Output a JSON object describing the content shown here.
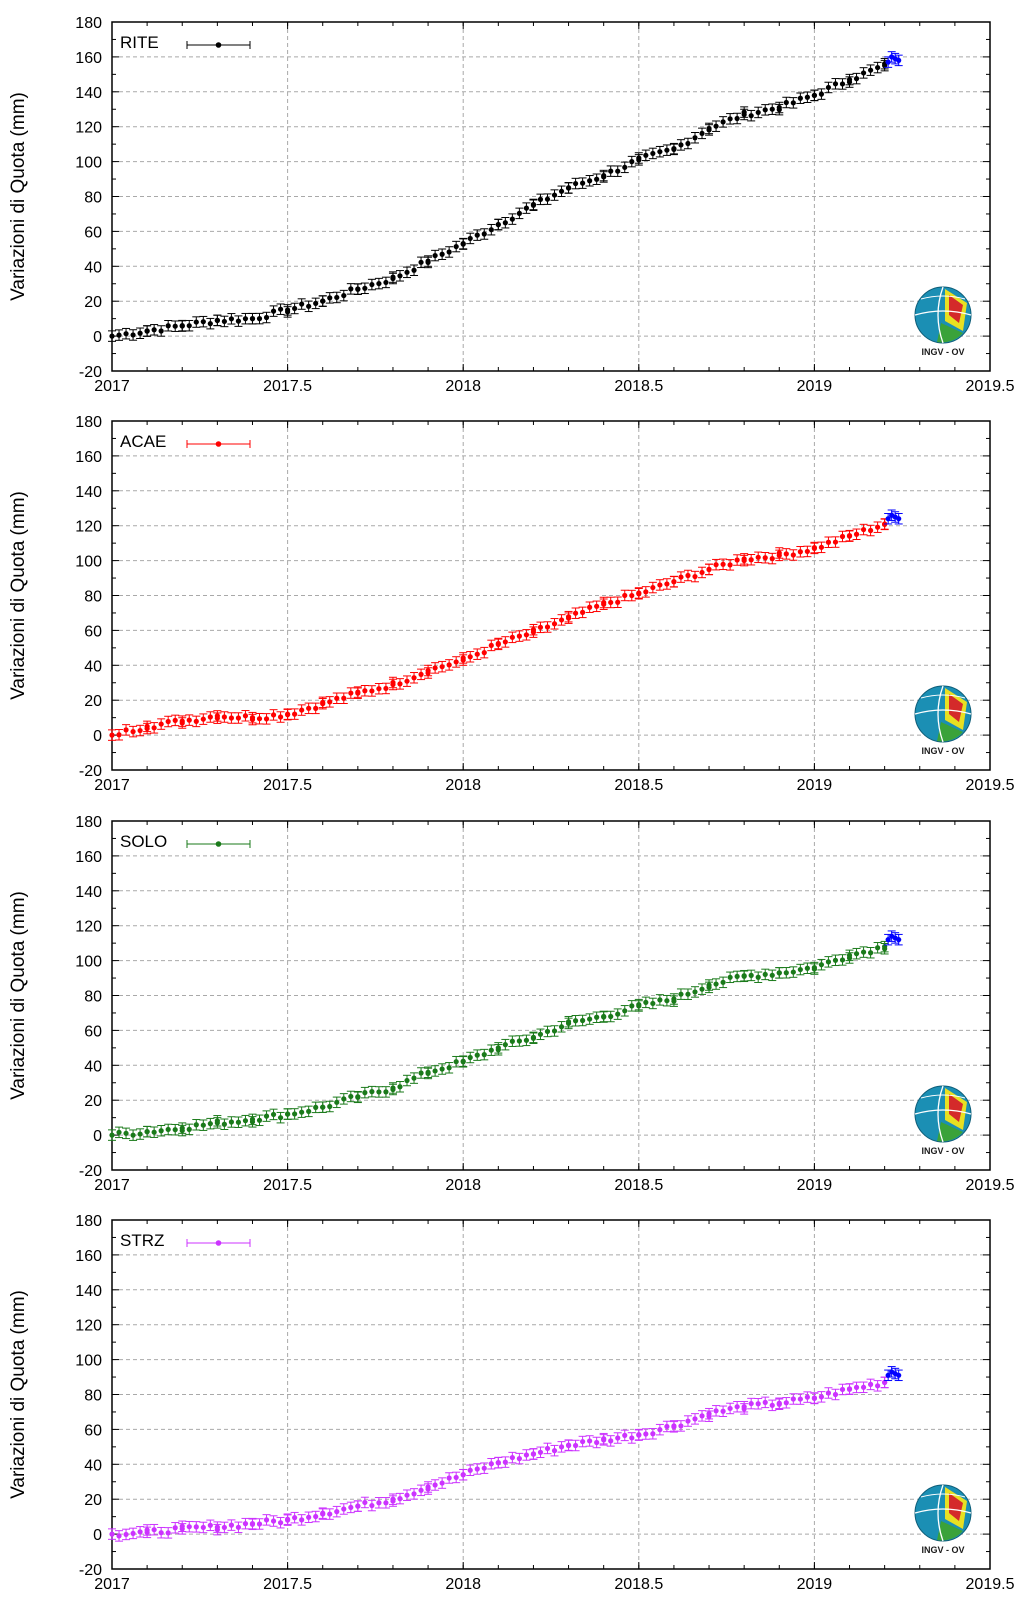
{
  "logo": {
    "text": "INGV - OV",
    "icon": "ingv-globe-logo"
  },
  "errorbar_mm": 3,
  "chart_data": [
    {
      "type": "scatter",
      "ylabel": "Variazioni di Quota (mm)",
      "xlim": [
        2017,
        2019.5
      ],
      "ylim": [
        -20,
        180
      ],
      "xticks": [
        2017,
        2017.5,
        2018,
        2018.5,
        2019,
        2019.5
      ],
      "xtick_labels": [
        "2017",
        "2017.5",
        "2018",
        "2018.5",
        "2019",
        "2019.5"
      ],
      "yticks": [
        -20,
        0,
        20,
        40,
        60,
        80,
        100,
        120,
        140,
        160,
        180
      ],
      "ytick_labels": [
        "-20",
        "0",
        "20",
        "40",
        "60",
        "80",
        "100",
        "120",
        "140",
        "160",
        "180"
      ],
      "grid": "dashed",
      "legend": "top-left",
      "series": [
        {
          "name": "RITE",
          "color": "#000000",
          "x": [
            2017.0,
            2017.1,
            2017.2,
            2017.3,
            2017.4,
            2017.5,
            2017.6,
            2017.7,
            2017.8,
            2017.9,
            2018.0,
            2018.1,
            2018.2,
            2018.3,
            2018.4,
            2018.5,
            2018.6,
            2018.7,
            2018.8,
            2018.9,
            2019.0,
            2019.1,
            2019.2
          ],
          "y": [
            0,
            3,
            6,
            9,
            10,
            15,
            20,
            27,
            33,
            43,
            53,
            64,
            75,
            85,
            92,
            101,
            107,
            119,
            127,
            131,
            138,
            147,
            155
          ]
        },
        {
          "name": "",
          "color": "#0000ff",
          "x": [
            2019.21,
            2019.22,
            2019.23,
            2019.24
          ],
          "y": [
            157,
            160,
            159,
            158
          ]
        }
      ]
    },
    {
      "type": "scatter",
      "ylabel": "Variazioni di Quota (mm)",
      "xlim": [
        2017,
        2019.5
      ],
      "ylim": [
        -20,
        180
      ],
      "xticks": [
        2017,
        2017.5,
        2018,
        2018.5,
        2019,
        2019.5
      ],
      "xtick_labels": [
        "2017",
        "2017.5",
        "2018",
        "2018.5",
        "2019",
        "2019.5"
      ],
      "yticks": [
        -20,
        0,
        20,
        40,
        60,
        80,
        100,
        120,
        140,
        160,
        180
      ],
      "ytick_labels": [
        "-20",
        "0",
        "20",
        "40",
        "60",
        "80",
        "100",
        "120",
        "140",
        "160",
        "180"
      ],
      "grid": "dashed",
      "legend": "top-left",
      "series": [
        {
          "name": "ACAE",
          "color": "#ff0000",
          "x": [
            2017.0,
            2017.1,
            2017.2,
            2017.3,
            2017.4,
            2017.5,
            2017.6,
            2017.7,
            2017.8,
            2017.9,
            2018.0,
            2018.1,
            2018.2,
            2018.3,
            2018.4,
            2018.5,
            2018.6,
            2018.7,
            2018.8,
            2018.9,
            2019.0,
            2019.1,
            2019.2
          ],
          "y": [
            0,
            5,
            8,
            11,
            10,
            12,
            18,
            24,
            29,
            37,
            43,
            52,
            59,
            67,
            75,
            81,
            88,
            95,
            101,
            103,
            107,
            114,
            121
          ]
        },
        {
          "name": "",
          "color": "#0000ff",
          "x": [
            2019.21,
            2019.22,
            2019.23,
            2019.24
          ],
          "y": [
            124,
            126,
            125,
            124
          ]
        }
      ]
    },
    {
      "type": "scatter",
      "ylabel": "Variazioni di Quota (mm)",
      "xlim": [
        2017,
        2019.5
      ],
      "ylim": [
        -20,
        180
      ],
      "xticks": [
        2017,
        2017.5,
        2018,
        2018.5,
        2019,
        2019.5
      ],
      "xtick_labels": [
        "2017",
        "2017.5",
        "2018",
        "2018.5",
        "2019",
        "2019.5"
      ],
      "yticks": [
        -20,
        0,
        20,
        40,
        60,
        80,
        100,
        120,
        140,
        160,
        180
      ],
      "ytick_labels": [
        "-20",
        "0",
        "20",
        "40",
        "60",
        "80",
        "100",
        "120",
        "140",
        "160",
        "180"
      ],
      "grid": "dashed",
      "legend": "top-left",
      "series": [
        {
          "name": "SOLO",
          "color": "#1a7a1a",
          "x": [
            2017.0,
            2017.1,
            2017.2,
            2017.3,
            2017.4,
            2017.5,
            2017.6,
            2017.7,
            2017.8,
            2017.9,
            2018.0,
            2018.1,
            2018.2,
            2018.3,
            2018.4,
            2018.5,
            2018.6,
            2018.7,
            2018.8,
            2018.9,
            2019.0,
            2019.1,
            2019.2
          ],
          "y": [
            0,
            2,
            4,
            7,
            9,
            12,
            16,
            22,
            27,
            36,
            42,
            50,
            56,
            64,
            68,
            74,
            78,
            86,
            91,
            93,
            96,
            103,
            108
          ]
        },
        {
          "name": "",
          "color": "#0000ff",
          "x": [
            2019.21,
            2019.22,
            2019.23,
            2019.24
          ],
          "y": [
            112,
            114,
            113,
            112
          ]
        }
      ]
    },
    {
      "type": "scatter",
      "ylabel": "Variazioni di Quota (mm)",
      "xlim": [
        2017,
        2019.5
      ],
      "ylim": [
        -20,
        180
      ],
      "xticks": [
        2017,
        2017.5,
        2018,
        2018.5,
        2019,
        2019.5
      ],
      "xtick_labels": [
        "2017",
        "2017.5",
        "2018",
        "2018.5",
        "2019",
        "2019.5"
      ],
      "yticks": [
        -20,
        0,
        20,
        40,
        60,
        80,
        100,
        120,
        140,
        160,
        180
      ],
      "ytick_labels": [
        "-20",
        "0",
        "20",
        "40",
        "60",
        "80",
        "100",
        "120",
        "140",
        "160",
        "180"
      ],
      "grid": "dashed",
      "legend": "top-left",
      "series": [
        {
          "name": "STRZ",
          "color": "#cc33ff",
          "x": [
            2017.0,
            2017.1,
            2017.2,
            2017.3,
            2017.4,
            2017.5,
            2017.6,
            2017.7,
            2017.8,
            2017.9,
            2018.0,
            2018.1,
            2018.2,
            2018.3,
            2018.4,
            2018.5,
            2018.6,
            2018.7,
            2018.8,
            2018.9,
            2019.0,
            2019.1,
            2019.2
          ],
          "y": [
            0,
            1,
            3,
            4,
            6,
            8,
            12,
            16,
            20,
            27,
            34,
            41,
            46,
            51,
            54,
            57,
            62,
            69,
            73,
            75,
            78,
            83,
            87
          ]
        },
        {
          "name": "",
          "color": "#0000ff",
          "x": [
            2019.21,
            2019.22,
            2019.23,
            2019.24
          ],
          "y": [
            91,
            93,
            92,
            91
          ]
        }
      ]
    }
  ]
}
